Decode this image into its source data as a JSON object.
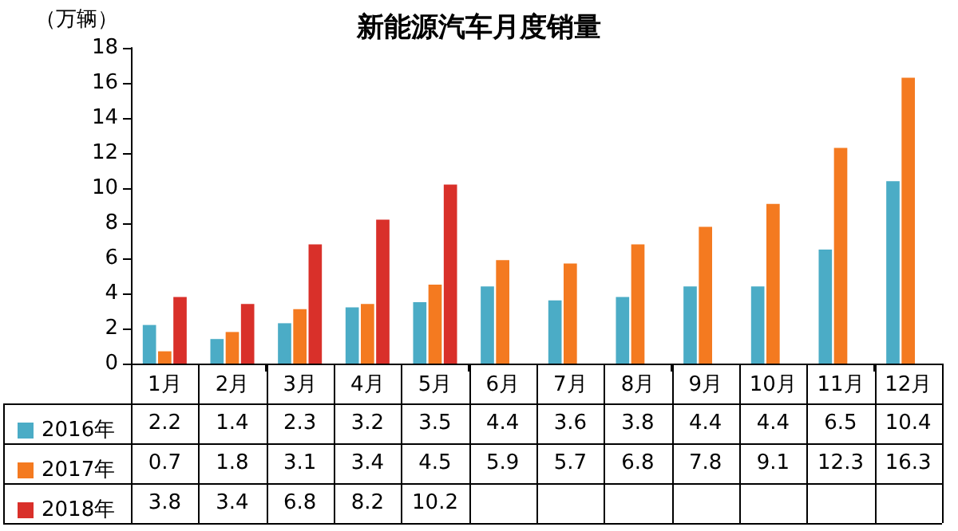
{
  "chart_data": {
    "type": "bar",
    "title": "新能源汽车月度销量",
    "ylabel": "（万辆）",
    "categories": [
      "1月",
      "2月",
      "3月",
      "4月",
      "5月",
      "6月",
      "7月",
      "8月",
      "9月",
      "10月",
      "11月",
      "12月"
    ],
    "series": [
      {
        "name": "2016年",
        "color": "#4bacc6",
        "values": [
          2.2,
          1.4,
          2.3,
          3.2,
          3.5,
          4.4,
          3.6,
          3.8,
          4.4,
          4.4,
          6.5,
          10.4
        ]
      },
      {
        "name": "2017年",
        "color": "#f47a20",
        "values": [
          0.7,
          1.8,
          3.1,
          3.4,
          4.5,
          5.9,
          5.7,
          6.8,
          7.8,
          9.1,
          12.3,
          16.3
        ]
      },
      {
        "name": "2018年",
        "color": "#d9302a",
        "values": [
          3.8,
          3.4,
          6.8,
          8.2,
          10.2,
          null,
          null,
          null,
          null,
          null,
          null,
          null
        ]
      }
    ],
    "ylim": [
      0,
      18
    ],
    "yticks": [
      0,
      2,
      4,
      6,
      8,
      10,
      12,
      14,
      16,
      18
    ],
    "grid": false,
    "legend": "bottom left",
    "data_labels": true
  }
}
